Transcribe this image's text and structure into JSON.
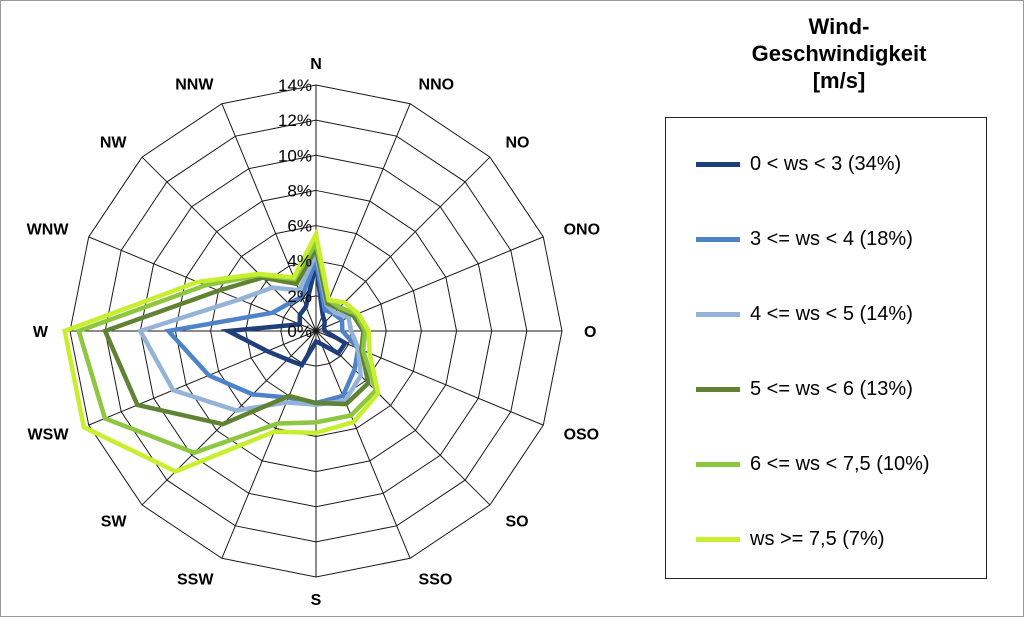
{
  "chart_data": {
    "type": "radar",
    "title": "Wind-Geschwindigkeit [m/s]",
    "title_lines": [
      "Wind-",
      "Geschwindigkeit",
      "[m/s]"
    ],
    "directions": [
      "N",
      "NNO",
      "NO",
      "ONO",
      "O",
      "OSO",
      "SO",
      "SSO",
      "S",
      "SSW",
      "SW",
      "WSW",
      "W",
      "WNW",
      "NW",
      "NNW"
    ],
    "r_ticks": [
      "0%",
      "2%",
      "4%",
      "6%",
      "8%",
      "10%",
      "12%",
      "14%"
    ],
    "r_values": [
      0,
      2,
      4,
      6,
      8,
      10,
      12,
      14
    ],
    "rlim": [
      0,
      14
    ],
    "legend_placement": "right",
    "series": [
      {
        "name": "0 < ws < 3 (34%)",
        "color": "#1f3f7a",
        "values": [
          3.8,
          1.0,
          0.7,
          0.5,
          0.5,
          1.8,
          1.8,
          0.8,
          0.6,
          2.1,
          2.3,
          3.0,
          5.0,
          1.0,
          1.3,
          1.5
        ]
      },
      {
        "name": "3 <= ws < 4 (18%)",
        "color": "#4f83c9",
        "values": [
          4.0,
          1.3,
          1.4,
          1.6,
          1.5,
          2.6,
          3.1,
          4.0,
          4.1,
          4.1,
          5.1,
          6.6,
          8.4,
          2.7,
          2.2,
          2.1
        ]
      },
      {
        "name": "4 <= ws < 5 (14%)",
        "color": "#95b3d7",
        "values": [
          4.4,
          1.6,
          1.5,
          2.0,
          2.0,
          2.6,
          3.6,
          4.3,
          4.2,
          4.4,
          6.4,
          8.8,
          10.0,
          4.7,
          3.5,
          2.5
        ]
      },
      {
        "name": "5 <= ws < 6 (13%)",
        "color": "#5f8233",
        "values": [
          4.7,
          1.7,
          1.8,
          2.3,
          2.7,
          2.8,
          4.2,
          4.5,
          4.1,
          4.0,
          7.5,
          11.0,
          12.0,
          6.0,
          4.3,
          2.9
        ]
      },
      {
        "name": "6 <= ws < 7,5 (10%)",
        "color": "#8dc63f",
        "values": [
          5.0,
          1.9,
          1.9,
          2.5,
          2.8,
          2.9,
          4.8,
          5.2,
          5.2,
          5.7,
          9.8,
          13.0,
          13.5,
          6.8,
          4.5,
          3.2
        ]
      },
      {
        "name": "ws >= 7,5 (7%)",
        "color": "#c8ef2e",
        "values": [
          5.5,
          1.9,
          2.3,
          2.6,
          3.0,
          3.3,
          5.0,
          5.6,
          5.8,
          6.2,
          11.3,
          14.3,
          14.3,
          7.3,
          4.6,
          3.3
        ]
      }
    ]
  }
}
